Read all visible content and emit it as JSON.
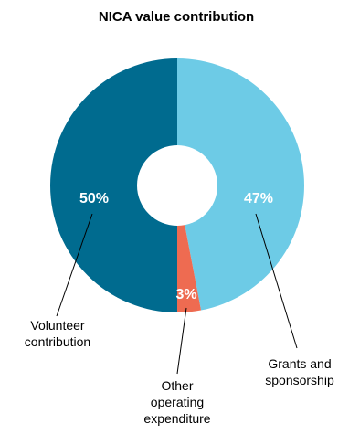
{
  "chart_data": {
    "type": "pie",
    "variant": "donut",
    "title": "NICA value contribution",
    "series": [
      {
        "name": "Volunteer contribution",
        "label_lines": [
          "Volunteer",
          "contribution"
        ],
        "value": 50,
        "value_label": "50%",
        "color": "#006b8f"
      },
      {
        "name": "Grants and sponsorship",
        "label_lines": [
          "Grants and",
          "sponsorship"
        ],
        "value": 47,
        "value_label": "47%",
        "color": "#6dcbe6"
      },
      {
        "name": "Other operating expenditure",
        "label_lines": [
          "Other",
          "operating",
          "expenditure"
        ],
        "value": 3,
        "value_label": "3%",
        "color": "#ee6b51"
      }
    ]
  }
}
